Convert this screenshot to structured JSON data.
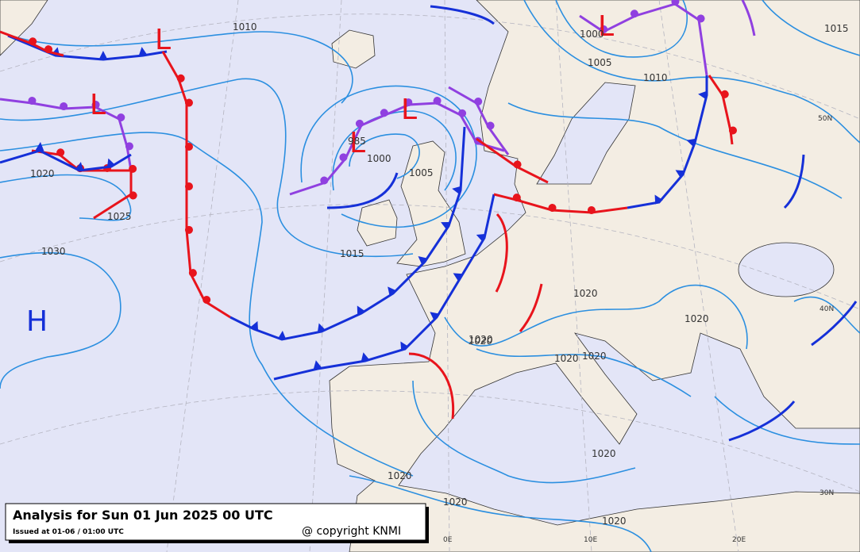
{
  "title": "Analysis for Sun 01 Jun 2025 00 UTC",
  "issued": "Issued at 01-06 / 01:00 UTC",
  "copyright": "@ copyright KNMI",
  "pressure_centers": [
    "L",
    "L",
    "L",
    "L",
    "L",
    "H"
  ],
  "isobar_labels": [
    "1010",
    "1000",
    "1005",
    "1010",
    "1015",
    "1020",
    "1025",
    "1030",
    "1015",
    "1000",
    "1005",
    "985",
    "1020",
    "1020",
    "1020",
    "1020",
    "1020",
    "1020",
    "1020",
    "1020",
    "1020",
    "1020"
  ],
  "grid_labels": [
    "50N",
    "40N",
    "30N",
    "0E",
    "10E",
    "20E"
  ]
}
